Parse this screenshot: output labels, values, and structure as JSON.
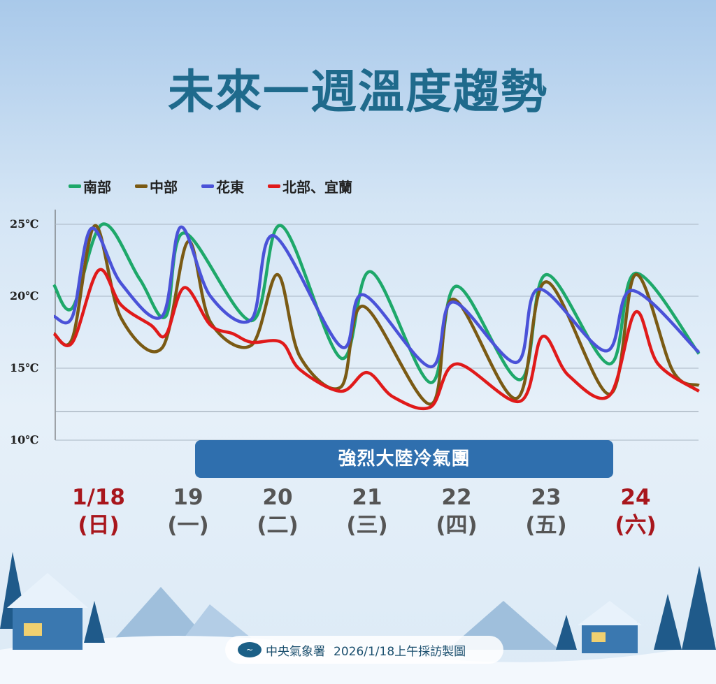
{
  "title": "未來一週溫度趨勢",
  "banner": "強烈大陸冷氣團",
  "credit": {
    "org": "中央氣象署",
    "text": "2026/1/18上午採訪製圖"
  },
  "days": [
    {
      "date": "1/18",
      "weekday": "(日)",
      "color": "#a8161c"
    },
    {
      "date": "19",
      "weekday": "(一)",
      "color": "#555555"
    },
    {
      "date": "20",
      "weekday": "(二)",
      "color": "#555555"
    },
    {
      "date": "21",
      "weekday": "(三)",
      "color": "#555555"
    },
    {
      "date": "22",
      "weekday": "(四)",
      "color": "#555555"
    },
    {
      "date": "23",
      "weekday": "(五)",
      "color": "#555555"
    },
    {
      "date": "24",
      "weekday": "(六)",
      "color": "#a8161c"
    }
  ],
  "chart_data": {
    "type": "line",
    "title": "未來一週溫度趨勢",
    "xlabel": "",
    "ylabel": "",
    "yticks": [
      "25℃",
      "20℃",
      "15℃",
      "10℃"
    ],
    "ylim": [
      10,
      25
    ],
    "grid": true,
    "legend": "top-left",
    "series": [
      {
        "name": "南部",
        "color": "#1ea86a",
        "points": [
          [
            "1/18 00:00",
            20.8
          ],
          [
            "1/18 05:00",
            19.2
          ],
          [
            "1/18 13:00",
            25.0
          ],
          [
            "1/18 23:00",
            21.2
          ],
          [
            "1/19 06:00",
            18.6
          ],
          [
            "1/19 11:00",
            24.4
          ],
          [
            "1/20 05:00",
            18.3
          ],
          [
            "1/20 13:00",
            24.9
          ],
          [
            "1/21 05:00",
            15.7
          ],
          [
            "1/21 13:00",
            21.7
          ],
          [
            "1/22 05:00",
            14.0
          ],
          [
            "1/22 12:00",
            20.7
          ],
          [
            "1/23 05:00",
            14.2
          ],
          [
            "1/23 12:00",
            21.5
          ],
          [
            "1/24 05:00",
            15.3
          ],
          [
            "1/24 12:00",
            21.6
          ],
          [
            "1/25 05:00",
            16.0
          ]
        ]
      },
      {
        "name": "中部",
        "color": "#7a5a14",
        "points": [
          [
            "1/18 00:00",
            17.4
          ],
          [
            "1/18 05:00",
            17.1
          ],
          [
            "1/18 11:00",
            24.9
          ],
          [
            "1/18 18:00",
            18.5
          ],
          [
            "1/19 05:00",
            16.4
          ],
          [
            "1/19 12:00",
            23.8
          ],
          [
            "1/19 18:00",
            18.2
          ],
          [
            "1/20 05:00",
            16.6
          ],
          [
            "1/20 12:00",
            21.5
          ],
          [
            "1/20 18:00",
            15.8
          ],
          [
            "1/21 05:00",
            13.7
          ],
          [
            "1/21 11:00",
            19.3
          ],
          [
            "1/22 05:00",
            12.5
          ],
          [
            "1/22 11:00",
            19.8
          ],
          [
            "1/23 04:00",
            12.9
          ],
          [
            "1/23 12:00",
            21.0
          ],
          [
            "1/24 05:00",
            13.2
          ],
          [
            "1/24 12:00",
            21.5
          ],
          [
            "1/24 22:00",
            14.8
          ],
          [
            "1/25 05:00",
            13.8
          ]
        ]
      },
      {
        "name": "花東",
        "color": "#4a52d8",
        "points": [
          [
            "1/18 00:00",
            18.6
          ],
          [
            "1/18 05:00",
            18.6
          ],
          [
            "1/18 10:00",
            24.7
          ],
          [
            "1/18 18:00",
            20.9
          ],
          [
            "1/19 05:00",
            18.6
          ],
          [
            "1/19 10:00",
            24.8
          ],
          [
            "1/19 18:00",
            20.0
          ],
          [
            "1/20 05:00",
            18.4
          ],
          [
            "1/20 11:00",
            24.2
          ],
          [
            "1/21 05:00",
            16.5
          ],
          [
            "1/21 11:00",
            20.1
          ],
          [
            "1/22 05:00",
            15.1
          ],
          [
            "1/22 11:00",
            19.6
          ],
          [
            "1/23 04:00",
            15.4
          ],
          [
            "1/23 10:00",
            20.5
          ],
          [
            "1/24 04:00",
            16.2
          ],
          [
            "1/24 11:00",
            20.4
          ],
          [
            "1/25 05:00",
            16.1
          ]
        ]
      },
      {
        "name": "北部、宜蘭",
        "color": "#e01a1a",
        "points": [
          [
            "1/18 00:00",
            17.4
          ],
          [
            "1/18 05:00",
            16.8
          ],
          [
            "1/18 12:00",
            21.8
          ],
          [
            "1/18 18:00",
            19.4
          ],
          [
            "1/19 02:00",
            18.0
          ],
          [
            "1/19 06:00",
            17.3
          ],
          [
            "1/19 11:00",
            20.6
          ],
          [
            "1/19 18:00",
            18.0
          ],
          [
            "1/20 00:00",
            17.4
          ],
          [
            "1/20 05:00",
            16.8
          ],
          [
            "1/20 13:00",
            16.8
          ],
          [
            "1/20 18:00",
            14.9
          ],
          [
            "1/21 05:00",
            13.4
          ],
          [
            "1/21 12:00",
            14.7
          ],
          [
            "1/21 19:00",
            13.0
          ],
          [
            "1/22 05:00",
            12.3
          ],
          [
            "1/22 12:00",
            15.3
          ],
          [
            "1/23 05:00",
            12.7
          ],
          [
            "1/23 11:00",
            17.2
          ],
          [
            "1/23 18:00",
            14.5
          ],
          [
            "1/24 05:00",
            13.1
          ],
          [
            "1/24 12:00",
            18.9
          ],
          [
            "1/24 18:00",
            15.3
          ],
          [
            "1/25 05:00",
            13.4
          ]
        ]
      }
    ]
  }
}
